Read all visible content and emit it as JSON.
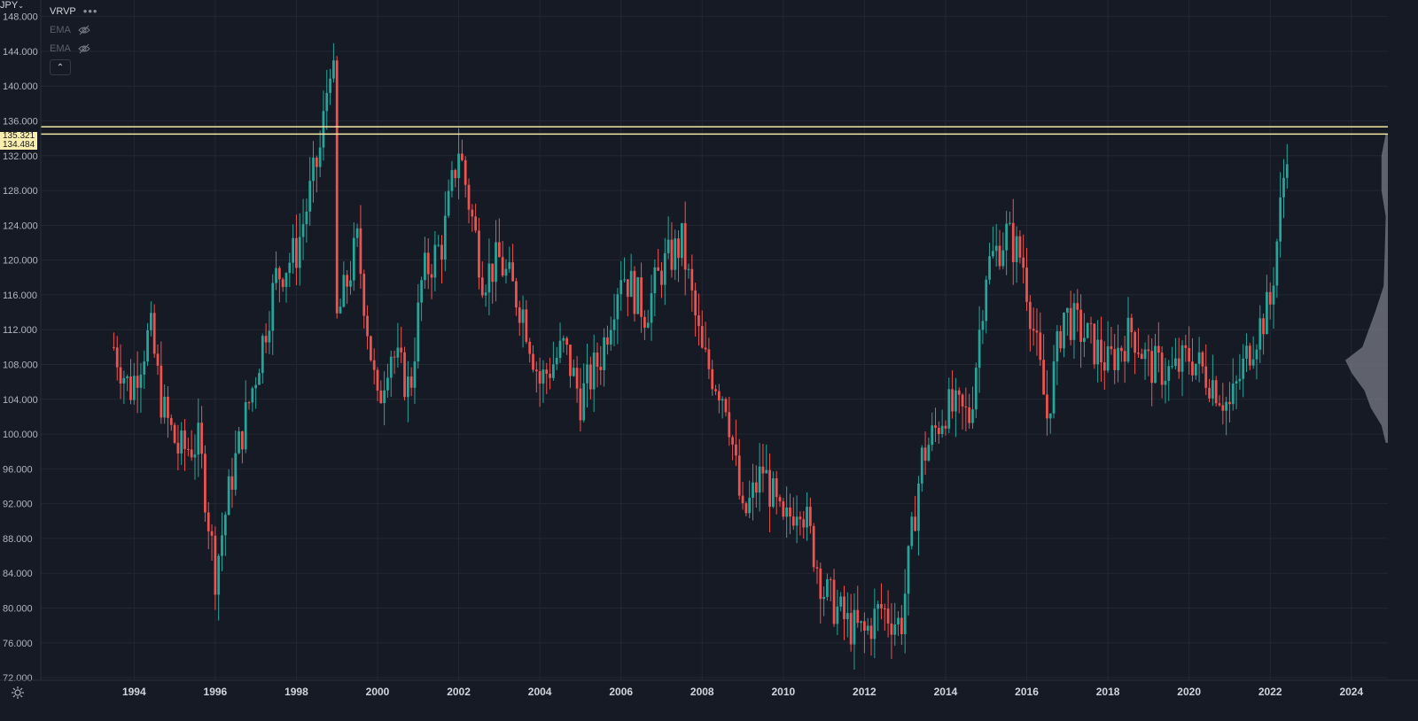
{
  "header": {
    "symbol": "JPY",
    "indicators": [
      {
        "name": "VRVP",
        "visible": true
      },
      {
        "name": "EMA",
        "visible": false
      },
      {
        "name": "EMA",
        "visible": false
      }
    ],
    "more_glyph": "•••",
    "collapse_glyph": "⌃"
  },
  "colors": {
    "background": "#161a25",
    "grid": "#232733",
    "up": "#26a69a",
    "down": "#ef5350",
    "hline": "#f5e7a1",
    "volume_profile": "#787b86"
  },
  "price_labels": [
    {
      "text": "135.321",
      "value": 135.321
    },
    {
      "text": "134.484",
      "value": 134.484
    }
  ],
  "chart_data": {
    "type": "candlestick",
    "x_ticks": [
      "1994",
      "1996",
      "1998",
      "2000",
      "2002",
      "2004",
      "2006",
      "2008",
      "2010",
      "2012",
      "2014",
      "2016",
      "2018",
      "2020",
      "2022",
      "2024"
    ],
    "y_ticks": [
      "72.000",
      "76.000",
      "80.000",
      "84.000",
      "88.000",
      "92.000",
      "96.000",
      "100.000",
      "104.000",
      "108.000",
      "112.000",
      "116.000",
      "120.000",
      "124.000",
      "128.000",
      "132.000",
      "136.000",
      "140.000",
      "144.000",
      "148.000"
    ],
    "xlim": [
      1991.7,
      2024.9
    ],
    "ylim": [
      71.7,
      149.9
    ],
    "horizontal_lines": [
      135.321,
      134.484
    ],
    "anchors": [
      [
        1993.5,
        110
      ],
      [
        1993.9,
        105
      ],
      [
        1994.4,
        112
      ],
      [
        1994.7,
        103
      ],
      [
        1995.1,
        98
      ],
      [
        1995.6,
        99
      ],
      [
        1996.0,
        84
      ],
      [
        1996.4,
        95
      ],
      [
        1997.0,
        107
      ],
      [
        1997.5,
        118
      ],
      [
        1998.0,
        121
      ],
      [
        1998.6,
        133
      ],
      [
        1998.9,
        146
      ],
      [
        1999.0,
        113
      ],
      [
        1999.5,
        122
      ],
      [
        2000.0,
        103
      ],
      [
        2000.3,
        110
      ],
      [
        2000.8,
        105
      ],
      [
        2001.1,
        118
      ],
      [
        2001.6,
        122
      ],
      [
        2002.0,
        133
      ],
      [
        2002.6,
        118
      ],
      [
        2003.0,
        120
      ],
      [
        2003.6,
        114
      ],
      [
        2004.0,
        106
      ],
      [
        2004.6,
        110
      ],
      [
        2005.0,
        104
      ],
      [
        2005.5,
        109
      ],
      [
        2006.0,
        119
      ],
      [
        2006.6,
        114
      ],
      [
        2007.0,
        119
      ],
      [
        2007.5,
        122
      ],
      [
        2008.0,
        109
      ],
      [
        2008.6,
        104
      ],
      [
        2009.0,
        90
      ],
      [
        2009.5,
        96
      ],
      [
        2010.0,
        89
      ],
      [
        2010.4,
        93
      ],
      [
        2011.0,
        82
      ],
      [
        2011.6,
        78
      ],
      [
        2012.0,
        77
      ],
      [
        2012.4,
        80
      ],
      [
        2012.9,
        78
      ],
      [
        2013.4,
        97
      ],
      [
        2014.0,
        103
      ],
      [
        2014.6,
        102
      ],
      [
        2015.0,
        119
      ],
      [
        2015.5,
        123
      ],
      [
        2015.9,
        120
      ],
      [
        2016.5,
        102
      ],
      [
        2016.9,
        114
      ],
      [
        2017.5,
        111
      ],
      [
        2018.0,
        108
      ],
      [
        2018.6,
        112
      ],
      [
        2019.0,
        108
      ],
      [
        2019.6,
        107
      ],
      [
        2020.0,
        109
      ],
      [
        2020.6,
        106
      ],
      [
        2021.0,
        103
      ],
      [
        2021.5,
        110
      ],
      [
        2022.0,
        115
      ],
      [
        2022.3,
        128
      ],
      [
        2022.45,
        135
      ]
    ],
    "volume_profile": [
      [
        134.5,
        0.05
      ],
      [
        132,
        0.15
      ],
      [
        128,
        0.15
      ],
      [
        125,
        0.05
      ],
      [
        120,
        0.08
      ],
      [
        117,
        0.1
      ],
      [
        114,
        0.3
      ],
      [
        112,
        0.45
      ],
      [
        110,
        0.6
      ],
      [
        108.5,
        1.0
      ],
      [
        107,
        0.85
      ],
      [
        105,
        0.55
      ],
      [
        103,
        0.4
      ],
      [
        101,
        0.15
      ],
      [
        99,
        0.05
      ]
    ]
  }
}
